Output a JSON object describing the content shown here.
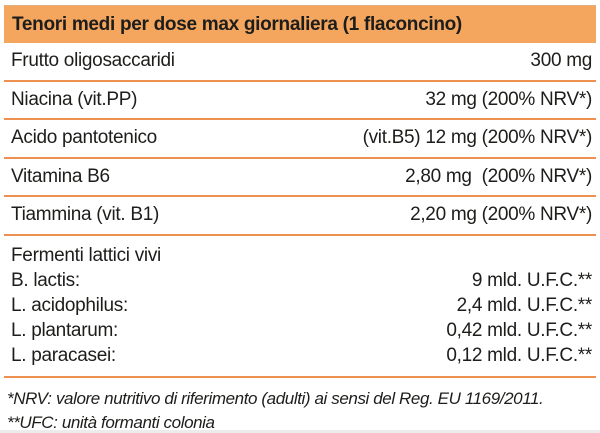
{
  "header": {
    "title": "Tenori medi per dose max giornaliera (1 flaconcino)"
  },
  "rows": [
    {
      "label": "Frutto oligosaccaridi",
      "value": "300 mg"
    },
    {
      "label": "Niacina (vit.PP)",
      "value": "32 mg (200% NRV*)"
    },
    {
      "label": "Acido pantotenico",
      "value": "(vit.B5) 12 mg (200% NRV*)"
    },
    {
      "label": "Vitamina B6",
      "value": "2,80 mg  (200% NRV*)"
    },
    {
      "label": "Tiammina (vit. B1)",
      "value": "2,20 mg (200% NRV*)"
    }
  ],
  "ferments": {
    "title": "Fermenti lattici vivi",
    "items": [
      {
        "label": "B. lactis:",
        "value": "9 mld. U.F.C.**"
      },
      {
        "label": "L. acidophilus:",
        "value": "2,4 mld. U.F.C.**"
      },
      {
        "label": "L. plantarum:",
        "value": "0,42 mld. U.F.C.**"
      },
      {
        "label": "L. paracasei:",
        "value": "0,12 mld. U.F.C.**"
      }
    ]
  },
  "footnotes": [
    "*NRV: valore nutritivo di riferimento (adulti) ai sensi del Reg. EU 1169/2011.",
    "**UFC: unità formanti colonia"
  ],
  "colors": {
    "header_bg": "#f4a55e",
    "divider": "#ed9150",
    "text": "#1d1d1b",
    "background": "#ffffff"
  }
}
